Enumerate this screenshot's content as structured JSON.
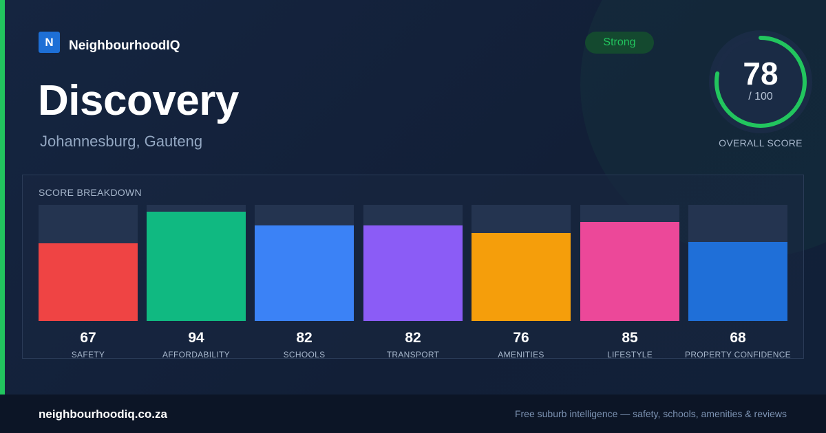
{
  "colors": {
    "accent": "#22c55e",
    "brand_blue": "#1d6fd6",
    "ring_track": "#1b2b46"
  },
  "brand": {
    "logo_letter": "N",
    "name": "NeighbourhoodIQ"
  },
  "suburb": {
    "name": "Discovery",
    "location": "Johannesburg, Gauteng"
  },
  "rating_badge": "Strong",
  "overall": {
    "score": 78,
    "score_text": "78",
    "denominator_text": "/ 100",
    "max": 100,
    "label": "OVERALL SCORE"
  },
  "breakdown": {
    "title": "SCORE BREAKDOWN",
    "items": [
      {
        "label": "SAFETY",
        "value": 67,
        "value_text": "67",
        "color": "#ef4444"
      },
      {
        "label": "AFFORDABILITY",
        "value": 94,
        "value_text": "94",
        "color": "#10b981"
      },
      {
        "label": "SCHOOLS",
        "value": 82,
        "value_text": "82",
        "color": "#3b82f6"
      },
      {
        "label": "TRANSPORT",
        "value": 82,
        "value_text": "82",
        "color": "#8b5cf6"
      },
      {
        "label": "AMENITIES",
        "value": 76,
        "value_text": "76",
        "color": "#f59e0b"
      },
      {
        "label": "LIFESTYLE",
        "value": 85,
        "value_text": "85",
        "color": "#ec4899"
      },
      {
        "label": "PROPERTY CONFIDENCE",
        "value": 68,
        "value_text": "68",
        "color": "#1f6fd8"
      }
    ]
  },
  "footer": {
    "domain": "neighbourhoodiq.co.za",
    "tagline": "Free suburb intelligence — safety, schools, amenities & reviews"
  }
}
